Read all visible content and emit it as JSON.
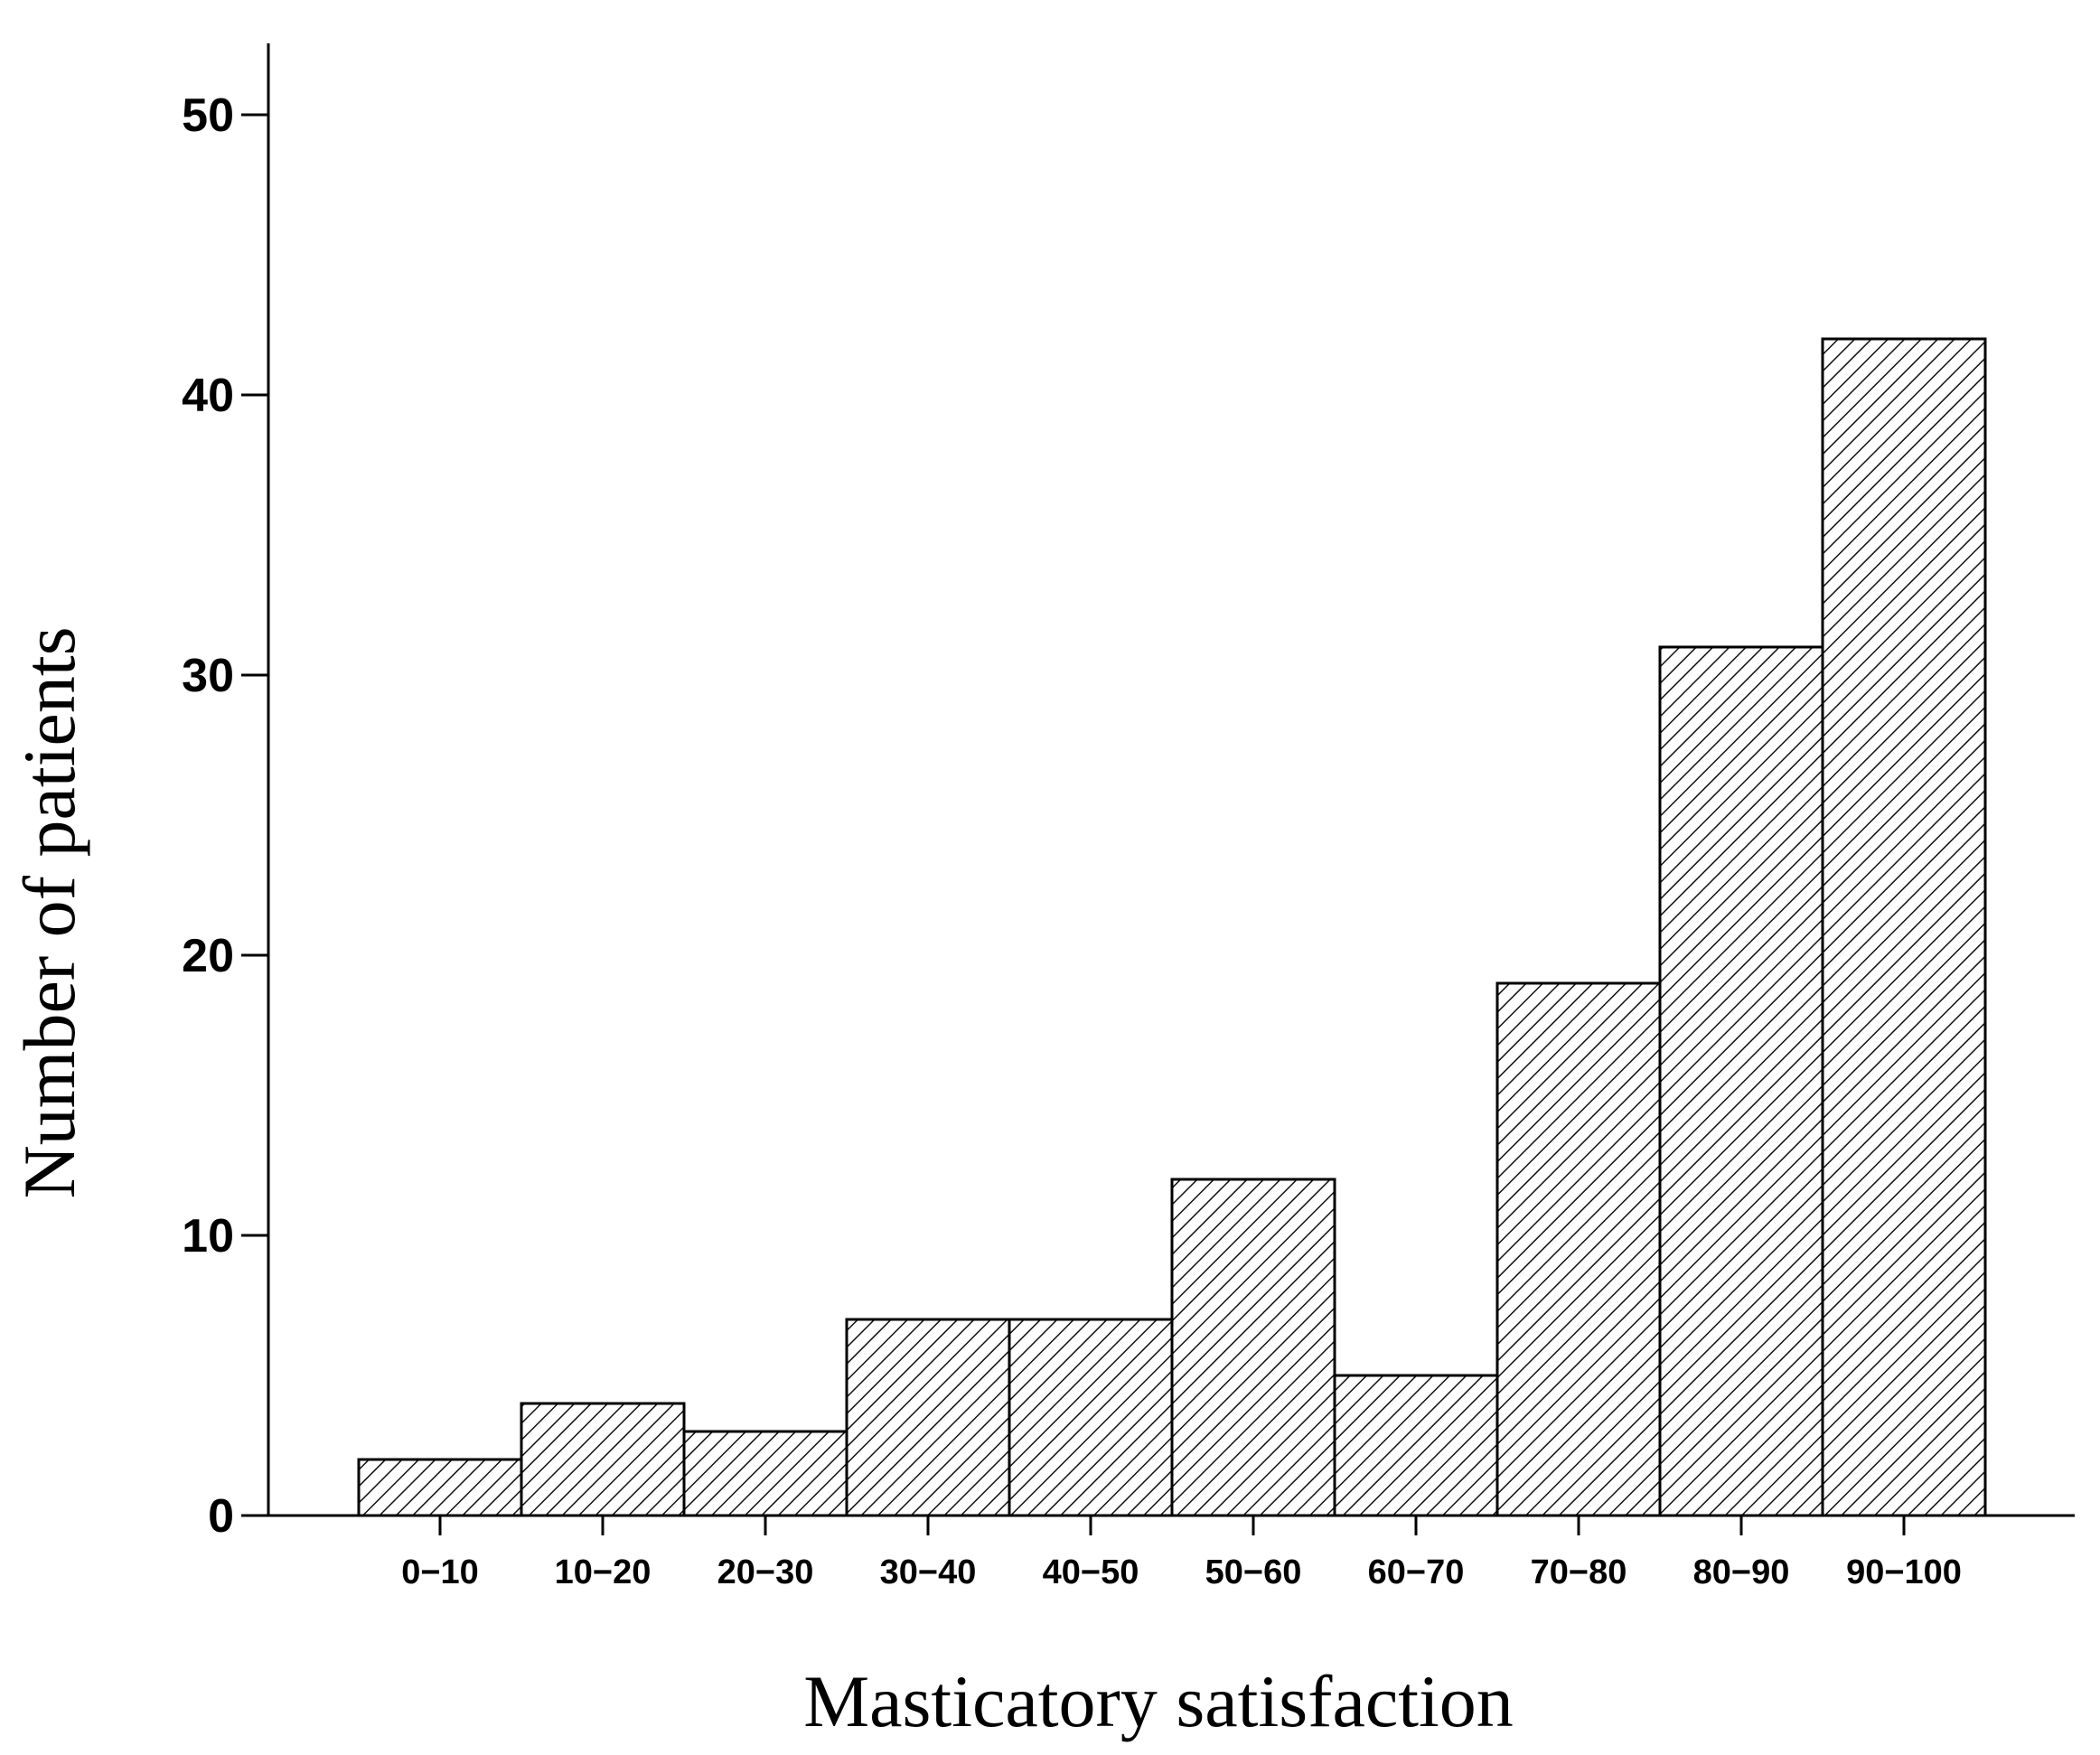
{
  "chart_data": {
    "type": "bar",
    "categories": [
      "0−10",
      "10−20",
      "20−30",
      "30−40",
      "40−50",
      "50−60",
      "60−70",
      "70−80",
      "80−90",
      "90−100"
    ],
    "values": [
      2,
      4,
      3,
      7,
      7,
      12,
      5,
      19,
      31,
      42
    ],
    "xlabel": "Masticatory satisfaction",
    "ylabel": "Number of patients",
    "ylim": [
      0,
      52.5
    ],
    "yticks": [
      0,
      10,
      20,
      30,
      40,
      50
    ],
    "grid": false,
    "fill_pattern": "diagonal-hatch",
    "bar_color": "#ffffff",
    "stroke_color": "#000000"
  }
}
